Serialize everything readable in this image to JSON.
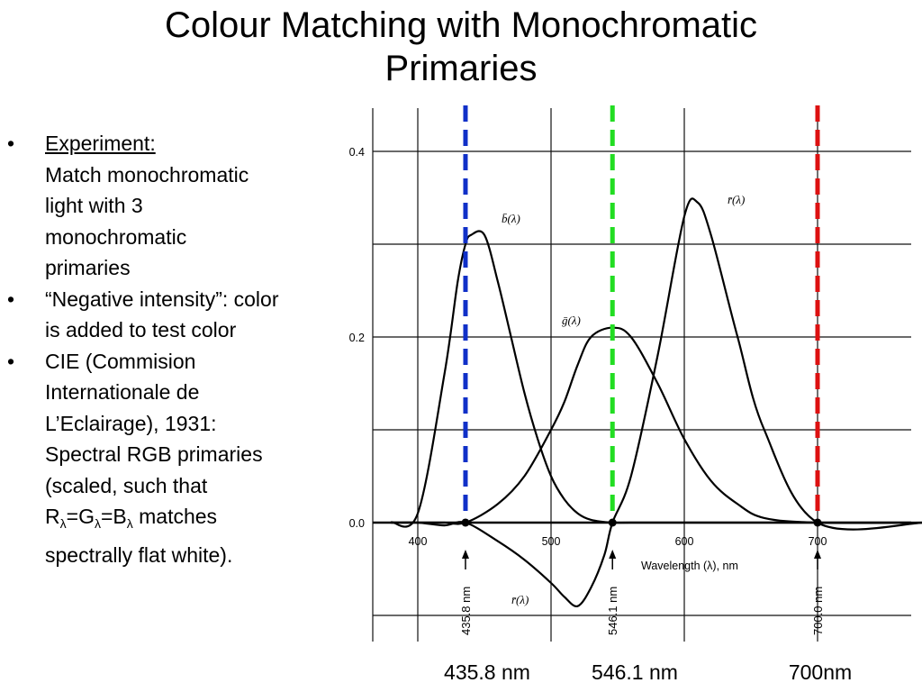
{
  "slide": {
    "title_line1": "Colour Matching with Monochromatic",
    "title_line2": "Primaries"
  },
  "bullets": {
    "b1_heading": "Experiment:",
    "b1_line1": "Match monochromatic",
    "b1_line2": "light with 3",
    "b1_line3": "monochromatic",
    "b1_line4": "primaries",
    "b2_line1": "“Negative intensity”: color",
    "b2_line2": "is added to test color",
    "b3_line1": "CIE (Commision",
    "b3_line2": "Internationale de",
    "b3_line3": "L’Eclairage), 1931:",
    "b3_line4": "Spectral RGB primaries",
    "b3_line5": "(scaled, such that",
    "b3_r": "R",
    "b3_g": "G",
    "b3_b": "B",
    "b3_sub": "λ",
    "b3_eq": "=",
    "b3_line6_tail": " matches",
    "b3_line7": "spectrally flat white)."
  },
  "bottom_labels": {
    "blue": "435.8 nm",
    "green": "546.1 nm",
    "red": "700nm"
  },
  "chart_data": {
    "type": "line",
    "xlabel": "Wavelength (λ), nm",
    "ylabel": "",
    "xlim": [
      380,
      780
    ],
    "ylim": [
      -0.1,
      0.4
    ],
    "xticks": [
      "400",
      "500",
      "600",
      "700"
    ],
    "yticks": [
      "0.0",
      "0.2",
      "0.4"
    ],
    "grid": true,
    "series": [
      {
        "name": "b̄(λ)",
        "label": "b̄(λ)",
        "color": "#000000",
        "x": [
          380,
          400,
          420,
          430,
          435.8,
          440,
          450,
          460,
          470,
          480,
          490,
          500,
          510,
          520,
          530,
          546.1,
          560,
          600,
          700,
          780
        ],
        "y": [
          0.0005,
          0.01,
          0.16,
          0.26,
          0.3,
          0.31,
          0.31,
          0.26,
          0.2,
          0.14,
          0.09,
          0.05,
          0.025,
          0.01,
          0.003,
          0.0,
          0.0,
          0.0,
          0.0,
          0.0
        ]
      },
      {
        "name": "ḡ(λ)",
        "label": "ḡ(λ)",
        "color": "#000000",
        "x": [
          380,
          400,
          420,
          435.8,
          460,
          480,
          500,
          510,
          520,
          530,
          546.1,
          560,
          580,
          600,
          620,
          640,
          660,
          700,
          780
        ],
        "y": [
          0.0,
          0.0,
          0.0,
          0.0,
          0.02,
          0.05,
          0.1,
          0.13,
          0.17,
          0.2,
          0.21,
          0.2,
          0.15,
          0.09,
          0.045,
          0.02,
          0.005,
          0.0,
          0.0
        ]
      },
      {
        "name": "r̄(λ)",
        "label": "r̄(λ)",
        "label_negative": "r̄(λ)",
        "color": "#000000",
        "x": [
          380,
          400,
          420,
          435.8,
          460,
          480,
          500,
          510,
          520,
          530,
          540,
          546.1,
          560,
          580,
          600,
          610,
          620,
          640,
          660,
          700,
          780
        ],
        "y": [
          0.0,
          0.0,
          -0.003,
          0.0,
          -0.02,
          -0.04,
          -0.065,
          -0.08,
          -0.09,
          -0.07,
          -0.035,
          0.0,
          0.05,
          0.18,
          0.33,
          0.345,
          0.31,
          0.2,
          0.1,
          0.0,
          0.0
        ]
      }
    ],
    "primaries": [
      {
        "wavelength": 435.8,
        "label": "435.8 nm",
        "color": "#1030c8"
      },
      {
        "wavelength": 546.1,
        "label": "546.1 nm",
        "color": "#22dd22"
      },
      {
        "wavelength": 700.0,
        "label": "700.0 nm",
        "color": "#dd1111"
      }
    ]
  }
}
